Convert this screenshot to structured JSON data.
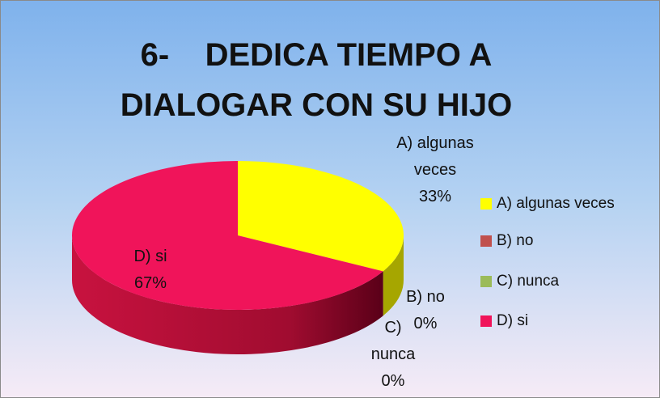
{
  "chart_data": {
    "type": "pie3d",
    "title": "6-    DEDICA TIEMPO A DIALOGAR CON SU HIJO",
    "categories": [
      "A)   algunas veces",
      "B)   no",
      "C)   nunca",
      "D)   si"
    ],
    "values": [
      33,
      0,
      0,
      67
    ],
    "value_labels": [
      "33%",
      "0%",
      "0%",
      "67%"
    ],
    "colors": [
      "#ffff00",
      "#c0504d",
      "#9bbb59",
      "#f0145a"
    ],
    "legend": "right"
  }
}
